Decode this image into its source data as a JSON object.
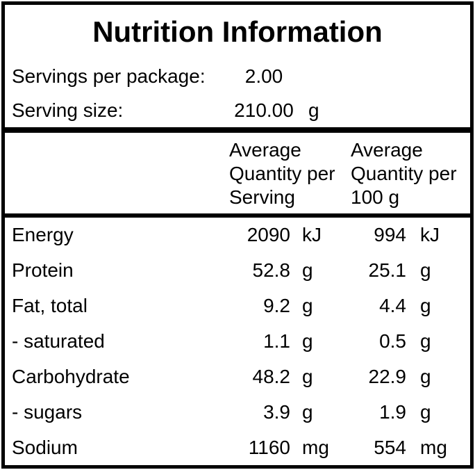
{
  "title": "Nutrition Information",
  "serving_info": {
    "rows": [
      {
        "label": "Servings per package:",
        "value": "2.00",
        "unit": ""
      },
      {
        "label": "Serving size:",
        "value": "210.00",
        "unit": "g"
      }
    ]
  },
  "table": {
    "column_headers": {
      "per_serving": "Average Quantity per Serving",
      "per_100g": "Average Quantity per 100 g"
    },
    "rows": [
      {
        "label": "Energy",
        "per_serving": "2090",
        "per_serving_unit": "kJ",
        "per_100g": "994",
        "per_100g_unit": "kJ"
      },
      {
        "label": "Protein",
        "per_serving": "52.8",
        "per_serving_unit": "g",
        "per_100g": "25.1",
        "per_100g_unit": "g"
      },
      {
        "label": "Fat, total",
        "per_serving": "9.2",
        "per_serving_unit": "g",
        "per_100g": "4.4",
        "per_100g_unit": "g"
      },
      {
        "label": "- saturated",
        "per_serving": "1.1",
        "per_serving_unit": "g",
        "per_100g": "0.5",
        "per_100g_unit": "g"
      },
      {
        "label": "Carbohydrate",
        "per_serving": "48.2",
        "per_serving_unit": "g",
        "per_100g": "22.9",
        "per_100g_unit": "g"
      },
      {
        "label": "- sugars",
        "per_serving": "3.9",
        "per_serving_unit": "g",
        "per_100g": "1.9",
        "per_100g_unit": "g"
      },
      {
        "label": "Sodium",
        "per_serving": "1160",
        "per_serving_unit": "mg",
        "per_100g": "554",
        "per_100g_unit": "mg"
      }
    ]
  },
  "colors": {
    "border": "#000000",
    "background": "#ffffff",
    "text": "#000000"
  }
}
